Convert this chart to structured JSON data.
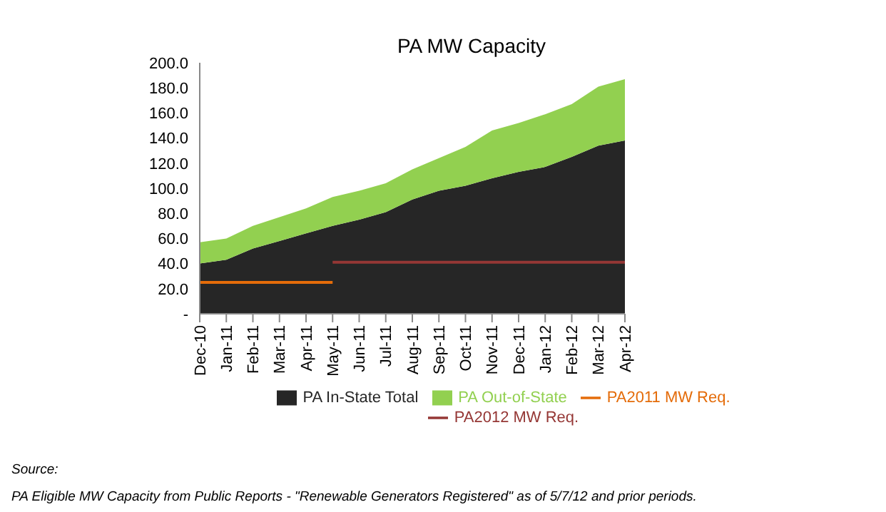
{
  "chart_data": {
    "type": "area",
    "title": "PA MW Capacity",
    "stacked": true,
    "categories": [
      "Dec-10",
      "Jan-11",
      "Feb-11",
      "Mar-11",
      "Apr-11",
      "May-11",
      "Jun-11",
      "Jul-11",
      "Aug-11",
      "Sep-11",
      "Oct-11",
      "Nov-11",
      "Dec-11",
      "Jan-12",
      "Feb-12",
      "Mar-12",
      "Apr-12"
    ],
    "series": [
      {
        "name": "PA In-State Total",
        "color": "#262626",
        "values": [
          40,
          43,
          52,
          58,
          64,
          70,
          75,
          81,
          91,
          98,
          102,
          108,
          113,
          117,
          125,
          134,
          138
        ]
      },
      {
        "name": "PA Out-of-State",
        "color": "#92d050",
        "values": [
          17,
          17,
          18,
          19,
          20,
          23,
          23,
          23,
          24,
          26,
          31,
          38,
          39,
          42,
          42,
          47,
          49
        ]
      },
      {
        "name": "PA2011 MW Req.",
        "type": "line",
        "color": "#e46c0a",
        "values": [
          25,
          25,
          25,
          25,
          25,
          25,
          null,
          null,
          null,
          null,
          null,
          null,
          null,
          null,
          null,
          null,
          null
        ]
      },
      {
        "name": "PA2012 MW Req.",
        "type": "line",
        "color": "#953735",
        "values": [
          null,
          null,
          null,
          null,
          null,
          41,
          41,
          41,
          41,
          41,
          41,
          41,
          41,
          41,
          41,
          41,
          41
        ]
      }
    ],
    "ylim": [
      0,
      200
    ],
    "yticks": [
      {
        "value": 0,
        "label": "-"
      },
      {
        "value": 20,
        "label": "20.0"
      },
      {
        "value": 40,
        "label": "40.0"
      },
      {
        "value": 60,
        "label": "60.0"
      },
      {
        "value": 80,
        "label": "80.0"
      },
      {
        "value": 100,
        "label": "100.0"
      },
      {
        "value": 120,
        "label": "120.0"
      },
      {
        "value": 140,
        "label": "140.0"
      },
      {
        "value": 160,
        "label": "160.0"
      },
      {
        "value": 180,
        "label": "180.0"
      },
      {
        "value": 200,
        "label": "200.0"
      }
    ],
    "grid": false,
    "legend": "bottom",
    "marker": "none",
    "annotations": [
      "Source:",
      "PA Eligible MW Capacity from Public Reports - \"Renewable Generators Registered\" as of 5/7/12 and prior periods."
    ]
  }
}
